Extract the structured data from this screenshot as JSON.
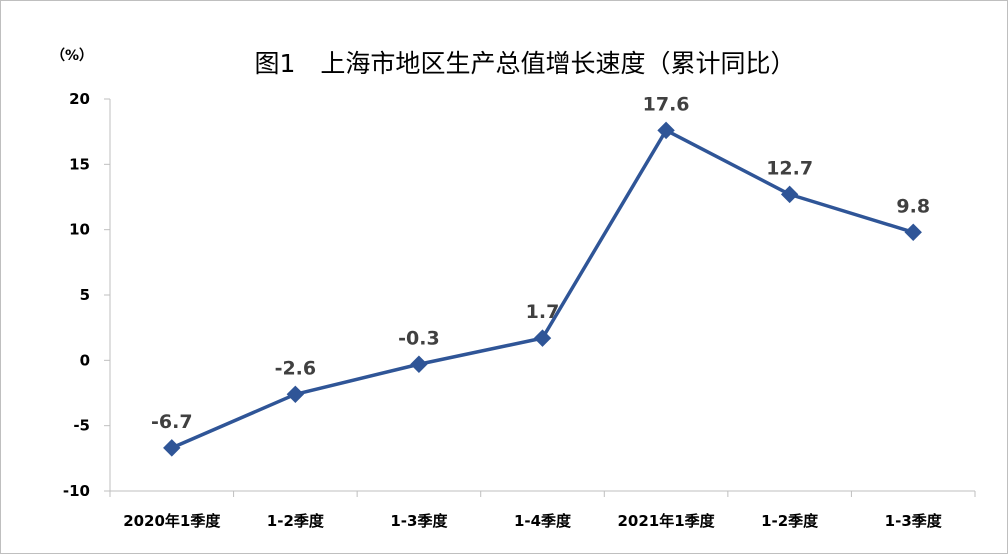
{
  "chart_data": {
    "type": "line",
    "title": "图1　上海市地区生产总值增长速度（累计同比）",
    "ylabel": "（%）",
    "xlabel": "",
    "categories": [
      "2020年1季度",
      "1-2季度",
      "1-3季度",
      "1-4季度",
      "2021年1季度",
      "1-2季度",
      "1-3季度"
    ],
    "series": [
      {
        "values": [
          -6.7,
          -2.6,
          -0.3,
          1.7,
          17.6,
          12.7,
          9.8
        ]
      }
    ],
    "data_labels": [
      "-6.7",
      "-2.6",
      "-0.3",
      "1.7",
      "17.6",
      "12.7",
      "9.8"
    ],
    "ylim": [
      -10,
      20
    ],
    "yticks": [
      "20",
      "15",
      "10",
      "5",
      "0",
      "-5",
      "-10"
    ],
    "grid": false,
    "legend": "none",
    "line_color": "#2F5597",
    "marker": "diamond"
  }
}
